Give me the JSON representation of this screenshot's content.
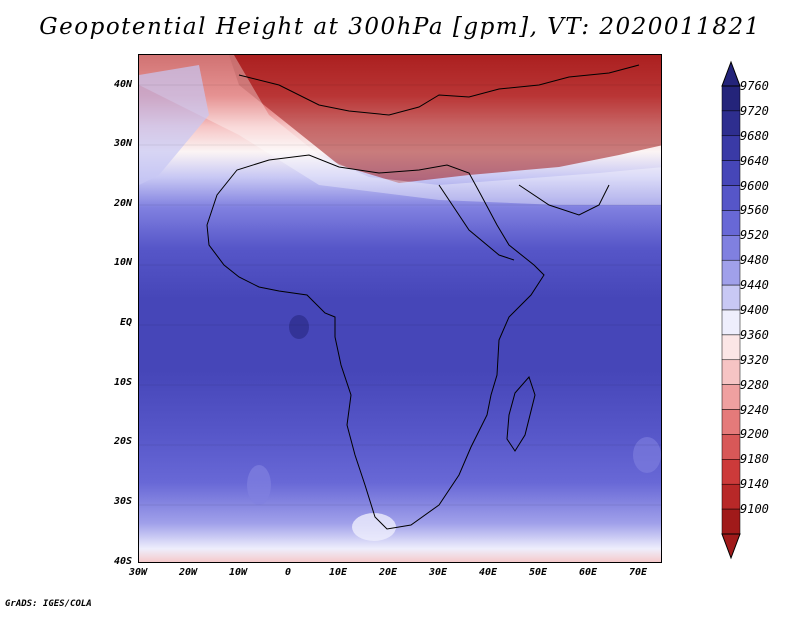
{
  "title": "Geopotential Height at 300hPa [gpm], VT: 2020011821",
  "credit": "GrADS: IGES/COLA",
  "map": {
    "variable": "Geopotential Height",
    "level": "300hPa",
    "units": "gpm",
    "valid_time": "2020011821",
    "lon_range": [
      -30,
      75
    ],
    "lat_range": [
      -40,
      45
    ],
    "lat_labels": [
      "40N",
      "30N",
      "20N",
      "10N",
      "EQ",
      "10S",
      "20S",
      "30S",
      "40S"
    ],
    "lon_labels": [
      "30W",
      "20W",
      "10W",
      "0",
      "10E",
      "20E",
      "30E",
      "40E",
      "50E",
      "60E",
      "70E"
    ]
  },
  "colorbar": {
    "labels": [
      "9760",
      "9720",
      "9680",
      "9640",
      "9600",
      "9560",
      "9520",
      "9480",
      "9440",
      "9400",
      "9360",
      "9320",
      "9280",
      "9240",
      "9200",
      "9180",
      "9140",
      "9100"
    ],
    "colors": [
      "#24247a",
      "#2e2e8f",
      "#3a3aa6",
      "#4646b8",
      "#5656c8",
      "#6868d6",
      "#8080e0",
      "#a0a0ea",
      "#c8c8f4",
      "#eeeefc",
      "#fbe6e6",
      "#f6c4c4",
      "#efa0a0",
      "#e57a7a",
      "#d85858",
      "#cc3a3a",
      "#b82828",
      "#a01a1a"
    ]
  }
}
